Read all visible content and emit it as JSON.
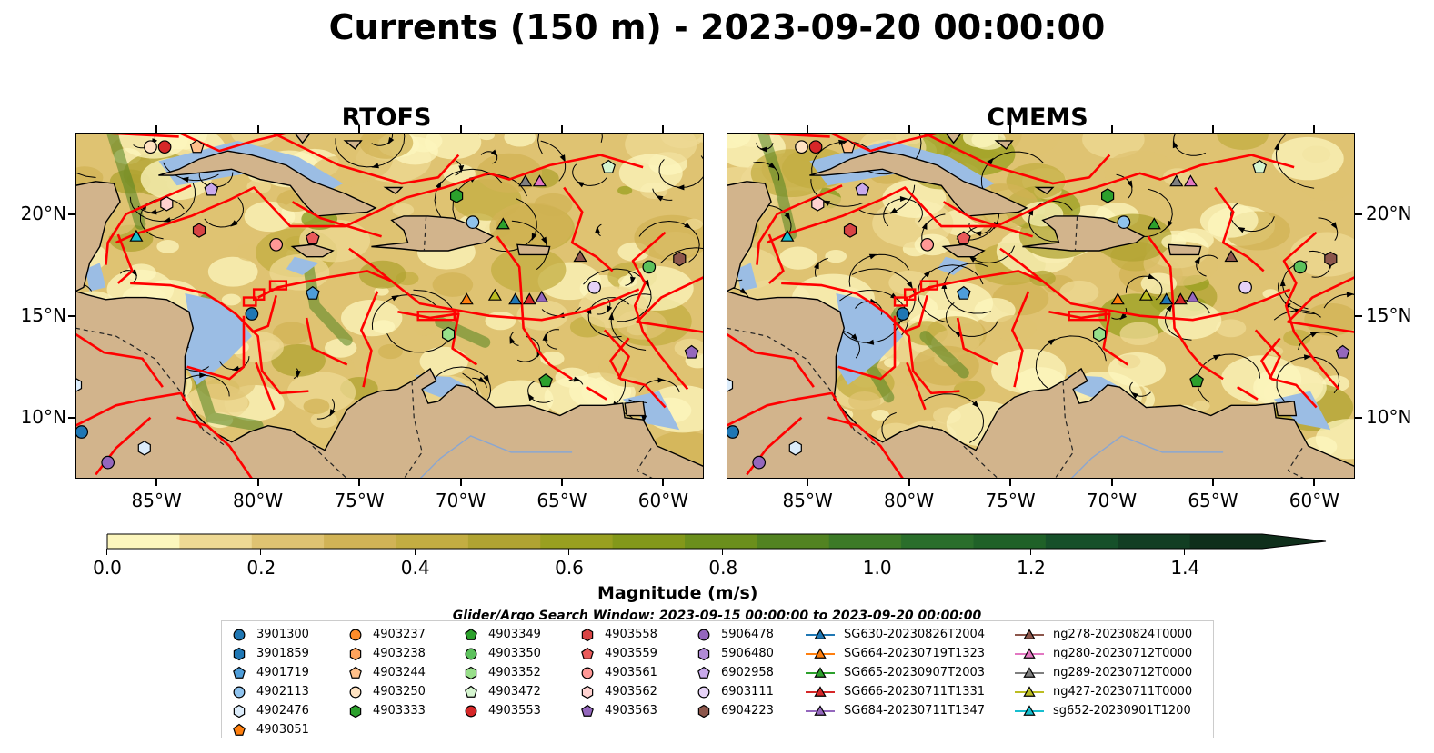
{
  "title": "Currents (150 m) - 2023-09-20 00:00:00",
  "panels": [
    {
      "title": "RTOFS"
    },
    {
      "title": "CMEMS"
    }
  ],
  "x_ticks": [
    "85°W",
    "80°W",
    "75°W",
    "70°W",
    "65°W",
    "60°W"
  ],
  "y_ticks": [
    "20°N",
    "15°N",
    "10°N"
  ],
  "map_extent": {
    "lon": [
      -89,
      -58
    ],
    "lat": [
      7,
      24
    ]
  },
  "colorbar": {
    "label": "Magnitude (m/s)",
    "ticks": [
      "0.0",
      "0.2",
      "0.4",
      "0.6",
      "0.8",
      "1.0",
      "1.2",
      "1.4"
    ],
    "range": [
      0.0,
      1.5
    ],
    "colors": [
      "#fcf6bd",
      "#eed994",
      "#dfc372",
      "#d1b356",
      "#c3ad42",
      "#b0a332",
      "#99a020",
      "#83981a",
      "#6b8f1c",
      "#528321",
      "#3c7a27",
      "#2a6e2b",
      "#1f6128",
      "#16502a",
      "#123e23",
      "#0f2f1b"
    ],
    "extend": "max"
  },
  "search_window": "Glider/Argo Search Window: 2023-09-15 00:00:00 to 2023-09-20 00:00:00",
  "colors": {
    "land": "#d2b48c",
    "shallow": "#9bbde4",
    "eez": "#ff0000",
    "stream": "#000000"
  },
  "legend": {
    "columns": [
      [
        {
          "label": "3901300",
          "marker": "circle",
          "color": "#1f77b4"
        },
        {
          "label": "3901859",
          "marker": "hexagon",
          "color": "#1f77b4"
        },
        {
          "label": "4901719",
          "marker": "pentagon",
          "color": "#4e9dd9"
        },
        {
          "label": "4902113",
          "marker": "circle",
          "color": "#8fc3ee"
        },
        {
          "label": "4902476",
          "marker": "hexagon",
          "color": "#dcecfa"
        },
        {
          "label": "4903051",
          "marker": "pentagon",
          "color": "#ff7f0e"
        }
      ],
      [
        {
          "label": "4903237",
          "marker": "circle",
          "color": "#ff8c2a"
        },
        {
          "label": "4903238",
          "marker": "hexagon",
          "color": "#ffa35c"
        },
        {
          "label": "4903244",
          "marker": "pentagon",
          "color": "#ffc08a"
        },
        {
          "label": "4903250",
          "marker": "circle",
          "color": "#ffe3c2"
        },
        {
          "label": "4903333",
          "marker": "hexagon",
          "color": "#2ca02c"
        }
      ],
      [
        {
          "label": "4903349",
          "marker": "pentagon",
          "color": "#2ca02c"
        },
        {
          "label": "4903350",
          "marker": "circle",
          "color": "#5cc15c"
        },
        {
          "label": "4903352",
          "marker": "hexagon",
          "color": "#98df8a"
        },
        {
          "label": "4903472",
          "marker": "pentagon",
          "color": "#d5f5cf"
        },
        {
          "label": "4903553",
          "marker": "circle",
          "color": "#d62728"
        }
      ],
      [
        {
          "label": "4903558",
          "marker": "hexagon",
          "color": "#d84444"
        },
        {
          "label": "4903559",
          "marker": "pentagon",
          "color": "#ea5a5a"
        },
        {
          "label": "4903561",
          "marker": "circle",
          "color": "#ff9896"
        },
        {
          "label": "4903562",
          "marker": "hexagon",
          "color": "#ffd2d0"
        },
        {
          "label": "4903563",
          "marker": "pentagon",
          "color": "#9467bd"
        }
      ],
      [
        {
          "label": "5906478",
          "marker": "circle",
          "color": "#9467bd"
        },
        {
          "label": "5906480",
          "marker": "hexagon",
          "color": "#b08ad6"
        },
        {
          "label": "6902958",
          "marker": "pentagon",
          "color": "#c9a9ec"
        },
        {
          "label": "6903111",
          "marker": "circle",
          "color": "#e6d2f7"
        },
        {
          "label": "6904223",
          "marker": "hexagon",
          "color": "#8c564b"
        }
      ],
      [
        {
          "label": "SG630-20230826T2004",
          "marker": "triangle",
          "color": "#1f77b4"
        },
        {
          "label": "SG664-20230719T1323",
          "marker": "triangle",
          "color": "#ff7f0e"
        },
        {
          "label": "SG665-20230907T2003",
          "marker": "triangle",
          "color": "#2ca02c"
        },
        {
          "label": "SG666-20230711T1331",
          "marker": "triangle",
          "color": "#d62728"
        },
        {
          "label": "SG684-20230711T1347",
          "marker": "triangle",
          "color": "#9467bd"
        }
      ],
      [
        {
          "label": "ng278-20230824T0000",
          "marker": "triangle",
          "color": "#8c564b"
        },
        {
          "label": "ng280-20230712T0000",
          "marker": "triangle",
          "color": "#e377c2"
        },
        {
          "label": "ng289-20230712T0000",
          "marker": "triangle",
          "color": "#7f7f7f"
        },
        {
          "label": "ng427-20230711T0000",
          "marker": "triangle",
          "color": "#bcbd22"
        },
        {
          "label": "sg652-20230901T1200",
          "marker": "triangle",
          "color": "#17becf"
        }
      ]
    ]
  },
  "observations": [
    {
      "id": "4903250",
      "marker": "circle",
      "color": "#ffe3c2",
      "lon": -85.3,
      "lat": 23.3
    },
    {
      "id": "4903553",
      "marker": "circle",
      "color": "#d62728",
      "lon": -84.6,
      "lat": 23.3
    },
    {
      "id": "4903244",
      "marker": "pentagon",
      "color": "#ffc08a",
      "lon": -83.0,
      "lat": 23.3
    },
    {
      "id": "6902958",
      "marker": "pentagon",
      "color": "#c9a9ec",
      "lon": -82.3,
      "lat": 21.2
    },
    {
      "id": "4903562",
      "marker": "hexagon",
      "color": "#ffd2d0",
      "lon": -84.5,
      "lat": 20.5
    },
    {
      "id": "sg652-20230901T1200",
      "marker": "triangle",
      "color": "#17becf",
      "lon": -86.0,
      "lat": 18.9
    },
    {
      "id": "4903558",
      "marker": "hexagon",
      "color": "#d84444",
      "lon": -82.9,
      "lat": 19.2
    },
    {
      "id": "4903561",
      "marker": "circle",
      "color": "#ff9896",
      "lon": -79.1,
      "lat": 18.5
    },
    {
      "id": "4903559",
      "marker": "pentagon",
      "color": "#ea5a5a",
      "lon": -77.3,
      "lat": 18.8
    },
    {
      "id": "4901719",
      "marker": "pentagon",
      "color": "#4e9dd9",
      "lon": -77.3,
      "lat": 16.1
    },
    {
      "id": "3901300",
      "marker": "circle",
      "color": "#1f77b4",
      "lon": -80.3,
      "lat": 15.1
    },
    {
      "id": "4903333",
      "marker": "hexagon",
      "color": "#2ca02c",
      "lon": -70.2,
      "lat": 20.9
    },
    {
      "id": "4902113",
      "marker": "circle",
      "color": "#8fc3ee",
      "lon": -69.4,
      "lat": 19.6
    },
    {
      "id": "SG665-20230907T2003",
      "marker": "triangle",
      "color": "#2ca02c",
      "lon": -67.9,
      "lat": 19.5
    },
    {
      "id": "ng289-20230712T0000",
      "marker": "triangle",
      "color": "#7f7f7f",
      "lon": -66.8,
      "lat": 21.6
    },
    {
      "id": "ng280-20230712T0000",
      "marker": "triangle",
      "color": "#e377c2",
      "lon": -66.1,
      "lat": 21.6
    },
    {
      "id": "4903472",
      "marker": "pentagon",
      "color": "#d5f5cf",
      "lon": -62.7,
      "lat": 22.3
    },
    {
      "id": "ng278-20230824T0000",
      "marker": "triangle",
      "color": "#8c564b",
      "lon": -64.1,
      "lat": 17.9
    },
    {
      "id": "6904223",
      "marker": "hexagon",
      "color": "#8c564b",
      "lon": -59.2,
      "lat": 17.8
    },
    {
      "id": "4903350",
      "marker": "circle",
      "color": "#5cc15c",
      "lon": -60.7,
      "lat": 17.4
    },
    {
      "id": "6903111",
      "marker": "circle",
      "color": "#e6d2f7",
      "lon": -63.4,
      "lat": 16.4
    },
    {
      "id": "SG664-20230719T1323",
      "marker": "triangle",
      "color": "#ff7f0e",
      "lon": -69.7,
      "lat": 15.8
    },
    {
      "id": "ng427-20230711T0000",
      "marker": "triangle",
      "color": "#bcbd22",
      "lon": -68.3,
      "lat": 16.0
    },
    {
      "id": "SG630-20230826T2004",
      "marker": "triangle",
      "color": "#1f77b4",
      "lon": -67.3,
      "lat": 15.8
    },
    {
      "id": "SG666-20230711T1331",
      "marker": "triangle",
      "color": "#d62728",
      "lon": -66.6,
      "lat": 15.8
    },
    {
      "id": "SG684-20230711T1347",
      "marker": "triangle",
      "color": "#9467bd",
      "lon": -66.0,
      "lat": 15.9
    },
    {
      "id": "4903352",
      "marker": "hexagon",
      "color": "#98df8a",
      "lon": -70.6,
      "lat": 14.1
    },
    {
      "id": "4903349",
      "marker": "pentagon",
      "color": "#2ca02c",
      "lon": -65.8,
      "lat": 11.8
    },
    {
      "id": "4903563",
      "marker": "pentagon",
      "color": "#9467bd",
      "lon": -58.6,
      "lat": 13.2
    },
    {
      "id": "4902476",
      "marker": "hexagon",
      "color": "#dcecfa",
      "lon": -89.0,
      "lat": 11.6
    },
    {
      "id": "3901859",
      "marker": "circle",
      "color": "#1f77b4",
      "lon": -88.7,
      "lat": 9.3
    },
    {
      "id": "5906478",
      "marker": "circle",
      "color": "#9467bd",
      "lon": -87.4,
      "lat": 7.8
    },
    {
      "id": "4902476b",
      "marker": "hexagon",
      "color": "#dcecfa",
      "lon": -85.6,
      "lat": 8.5
    }
  ]
}
